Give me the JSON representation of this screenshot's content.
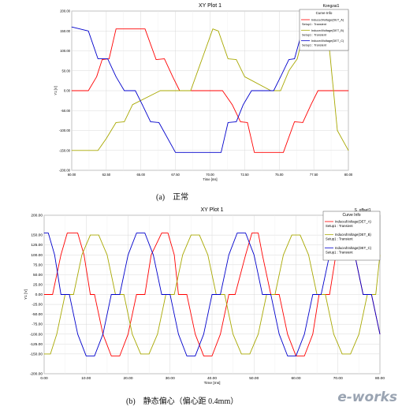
{
  "charts": [
    {
      "title": "XY Plot 1",
      "tag": "Kongzai1",
      "caption": "(a)　正常",
      "legend": {
        "header": "Curve Info",
        "entries": [
          {
            "name": "InducedVoltage(DET_A)",
            "setup": "Setup1 : Transient"
          },
          {
            "name": "InducedVoltage(DET_B)",
            "setup": "Setup1 : Transient"
          },
          {
            "name": "InducedVoltage(DET_C)",
            "setup": "Setup1 : Transient"
          }
        ]
      },
      "xlabel": "Time [ms]",
      "ylabel": "Y1 [V]"
    },
    {
      "title": "XY Plot 1",
      "tag": "S_offset1",
      "caption": "(b)　静态偏心（偏心距 0.4mm）",
      "legend": {
        "header": "Curve Info",
        "entries": [
          {
            "name": "InducedVoltage(DET_A)",
            "setup": "Setup1 : Transient"
          },
          {
            "name": "InducedVoltage(DET_B)",
            "setup": "Setup1 : Transient"
          },
          {
            "name": "InducedVoltage(DET_C)",
            "setup": "Setup1 : Transient"
          }
        ]
      },
      "xlabel": "Time [ms]",
      "ylabel": "Y1 [V]"
    }
  ],
  "watermark": "e-works",
  "colors": {
    "A": "#ff0000",
    "B": "#a8a800",
    "C": "#0000cc",
    "grid": "#d8d8d8"
  },
  "chart_data": [
    {
      "type": "line",
      "title": "XY Plot 1",
      "xlabel": "Time [ms]",
      "ylabel": "Y1 [V]",
      "xlim": [
        60,
        80
      ],
      "ylim": [
        -200,
        200
      ],
      "xticks": [
        "60.00",
        "62.50",
        "65.00",
        "67.50",
        "70.00",
        "72.50",
        "75.00",
        "77.50",
        "80.00"
      ],
      "yticks": [
        "200.00",
        "150.00",
        "100.00",
        "50.00",
        "0.00",
        "-50.00",
        "-100.00",
        "-150.00",
        "-200.00"
      ],
      "grid": true,
      "legend_position": "top-right",
      "series": [
        {
          "name": "InducedVoltage(DET_A)",
          "color": "#ff0000",
          "x": [
            60,
            61.2,
            61.8,
            62.2,
            62.7,
            63.2,
            65.3,
            66.1,
            66.7,
            67.3,
            67.8,
            70.9,
            71.6,
            72.2,
            72.7,
            73.2,
            75.3,
            76.1,
            76.7,
            77.3,
            77.8,
            80
          ],
          "y": [
            0,
            0,
            35,
            78,
            80,
            155,
            155,
            78,
            80,
            35,
            0,
            0,
            -35,
            -78,
            -80,
            -155,
            -155,
            -78,
            -80,
            -35,
            0,
            0
          ]
        },
        {
          "name": "InducedVoltage(DET_B)",
          "color": "#a8a800",
          "x": [
            60,
            61.9,
            62.5,
            63.2,
            63.8,
            64.4,
            66.4,
            67.0,
            67.6,
            68.2,
            68.6,
            70.2,
            70.6,
            71.3,
            71.9,
            72.5,
            74.4,
            75.1,
            75.7,
            76.3,
            76.8,
            78.5,
            79.2,
            80
          ],
          "y": [
            -150,
            -150,
            -120,
            -80,
            -78,
            -35,
            0,
            0,
            0,
            0,
            0,
            155,
            150,
            80,
            78,
            35,
            0,
            0,
            50,
            80,
            150,
            150,
            -100,
            -150
          ]
        },
        {
          "name": "InducedVoltage(DET_C)",
          "color": "#0000cc",
          "x": [
            60,
            61.2,
            61.9,
            62.6,
            63.2,
            63.8,
            64.6,
            65.1,
            65.7,
            66.3,
            67.5,
            68.1,
            70.8,
            71.3,
            71.9,
            72.4,
            73.0,
            74.6,
            75.1,
            75.7,
            76.1,
            76.7,
            80
          ],
          "y": [
            160,
            150,
            80,
            80,
            35,
            0,
            0,
            -35,
            -78,
            -80,
            -155,
            -155,
            -155,
            -80,
            -78,
            -35,
            0,
            0,
            35,
            78,
            80,
            155,
            155
          ]
        }
      ]
    },
    {
      "type": "line",
      "title": "XY Plot 1",
      "xlabel": "Time [ms]",
      "ylabel": "Y1 [V]",
      "xlim": [
        0,
        80
      ],
      "ylim": [
        -200,
        200
      ],
      "xticks": [
        "0.00",
        "10.00",
        "20.00",
        "30.00",
        "40.00",
        "50.00",
        "60.00",
        "70.00",
        "80.00"
      ],
      "yticks": [
        "200.00",
        "150.00",
        "125.00",
        "100.00",
        "75.00",
        "50.00",
        "25.00",
        "0.00",
        "-25.00",
        "-50.00",
        "-75.00",
        "-100.00",
        "-125.00",
        "-150.00",
        "-200.00"
      ],
      "grid": true,
      "legend_position": "top-right",
      "series": [
        {
          "name": "InducedVoltage(DET_A)",
          "color": "#ff0000",
          "x": [
            0,
            2,
            4,
            5.5,
            8,
            9.5,
            11,
            12,
            14,
            16,
            18,
            20,
            22,
            24,
            25.5,
            28,
            29.5,
            31,
            32,
            34,
            36,
            38,
            40,
            42,
            44,
            45.5,
            48,
            49.5,
            51,
            52,
            54,
            56,
            58,
            60,
            62,
            64,
            65.5,
            68,
            69.5,
            71,
            72,
            74,
            76,
            78,
            80
          ],
          "y": [
            0,
            0,
            100,
            155,
            155,
            100,
            0,
            0,
            -100,
            -155,
            -155,
            -100,
            0,
            0,
            100,
            155,
            155,
            100,
            0,
            0,
            -100,
            -155,
            -155,
            -100,
            0,
            0,
            100,
            155,
            155,
            100,
            0,
            0,
            -100,
            -155,
            -155,
            -100,
            0,
            0,
            100,
            155,
            155,
            100,
            0,
            0,
            -100
          ]
        },
        {
          "name": "InducedVoltage(DET_B)",
          "color": "#a8a800",
          "x": [
            0,
            1.5,
            3,
            5,
            7,
            9,
            11,
            13,
            15,
            17,
            19,
            21,
            23,
            25,
            27,
            29,
            31,
            33,
            35,
            37,
            39,
            41,
            43,
            45,
            47,
            49,
            51,
            53,
            55,
            57,
            59,
            61,
            63,
            65,
            67,
            69,
            71,
            73,
            75,
            77,
            79,
            80
          ],
          "y": [
            -150,
            -150,
            -100,
            0,
            0,
            100,
            150,
            150,
            100,
            0,
            0,
            -100,
            -150,
            -150,
            -100,
            0,
            0,
            100,
            150,
            150,
            100,
            0,
            0,
            -100,
            -150,
            -150,
            -100,
            0,
            0,
            100,
            150,
            150,
            100,
            0,
            0,
            -100,
            -150,
            -150,
            -100,
            0,
            0,
            100
          ]
        },
        {
          "name": "InducedVoltage(DET_C)",
          "color": "#0000cc",
          "x": [
            0,
            1,
            2.5,
            4,
            6,
            8,
            10,
            12,
            14,
            16,
            18,
            20,
            22,
            24,
            26,
            28,
            30,
            32,
            34,
            36,
            38,
            40,
            42,
            44,
            46,
            48,
            50,
            52,
            54,
            56,
            58,
            60,
            62,
            64,
            66,
            68,
            70,
            72,
            74,
            76,
            78,
            80
          ],
          "y": [
            155,
            155,
            100,
            0,
            0,
            -100,
            -155,
            -155,
            -100,
            0,
            0,
            100,
            155,
            155,
            100,
            0,
            0,
            -100,
            -155,
            -155,
            -100,
            0,
            0,
            100,
            155,
            155,
            100,
            0,
            0,
            -100,
            -155,
            -155,
            -100,
            0,
            0,
            100,
            155,
            155,
            100,
            0,
            0,
            -100
          ]
        }
      ]
    }
  ]
}
